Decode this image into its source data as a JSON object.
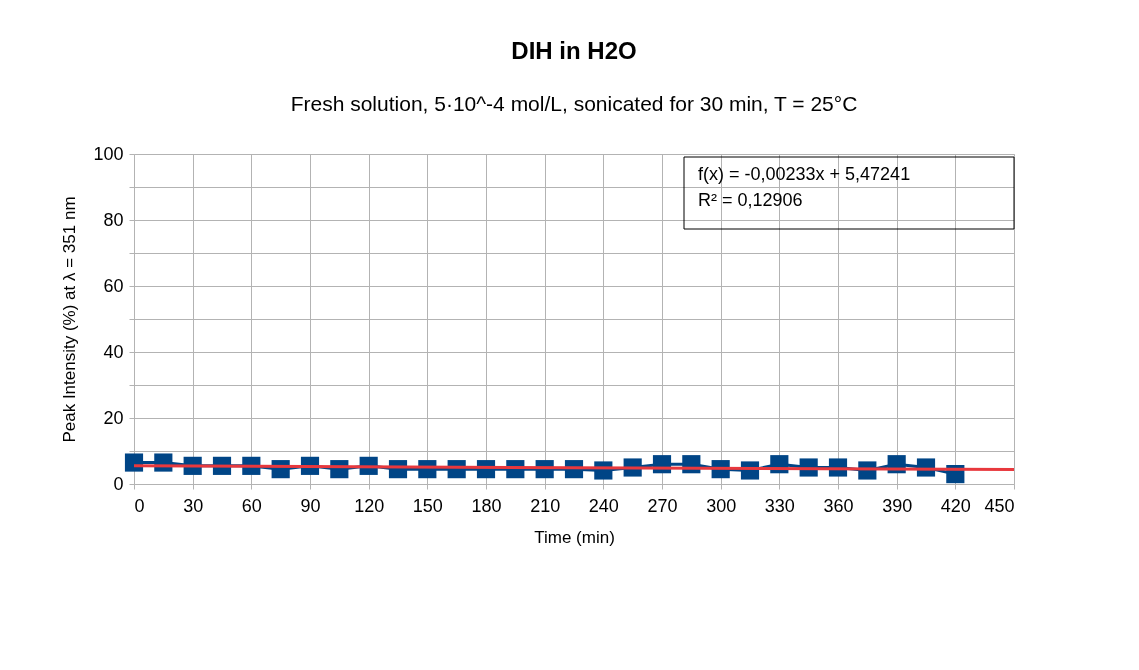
{
  "chart_data": {
    "type": "line",
    "title": "DIH in H2O",
    "subtitle": "Fresh solution, 5·10^-4 mol/L, sonicated for 30 min, T = 25°C",
    "xlabel": "Time (min)",
    "ylabel": "Peak Intensity (%) at λ = 351 nm",
    "x": [
      0,
      15,
      30,
      45,
      60,
      75,
      90,
      105,
      120,
      135,
      150,
      165,
      180,
      195,
      210,
      225,
      240,
      255,
      270,
      285,
      300,
      315,
      330,
      345,
      360,
      375,
      390,
      405,
      420
    ],
    "series": [
      {
        "color": "#004586",
        "marker": "square",
        "values": [
          6.5,
          6.5,
          5.5,
          5.5,
          5.5,
          4.5,
          5.5,
          4.5,
          5.5,
          4.5,
          4.5,
          4.5,
          4.5,
          4.5,
          4.5,
          4.5,
          4.1,
          5.0,
          6.0,
          6.0,
          4.5,
          4.1,
          6.0,
          5.0,
          5.0,
          4.1,
          6.0,
          5.0,
          3.0
        ]
      },
      {
        "color": "#e8383d",
        "marker": "none",
        "x": [
          0,
          450
        ],
        "values": [
          5.5,
          4.4
        ]
      }
    ],
    "xlim": [
      0,
      450
    ],
    "xticks": [
      0,
      30,
      60,
      90,
      120,
      150,
      180,
      210,
      240,
      270,
      300,
      330,
      360,
      390,
      420,
      450
    ],
    "ylim": [
      0,
      100
    ],
    "yticks": [
      0,
      {
        "value": 10,
        "label": null
      },
      20,
      {
        "value": 30,
        "label": null
      },
      40,
      {
        "value": 50,
        "label": null
      },
      60,
      {
        "value": 70,
        "label": null
      },
      80,
      {
        "value": 90,
        "label": null
      },
      100
    ],
    "grid": true,
    "annotations": [
      "f(x) = -0,00233x + 5,47241",
      "R² = 0,12906"
    ]
  }
}
